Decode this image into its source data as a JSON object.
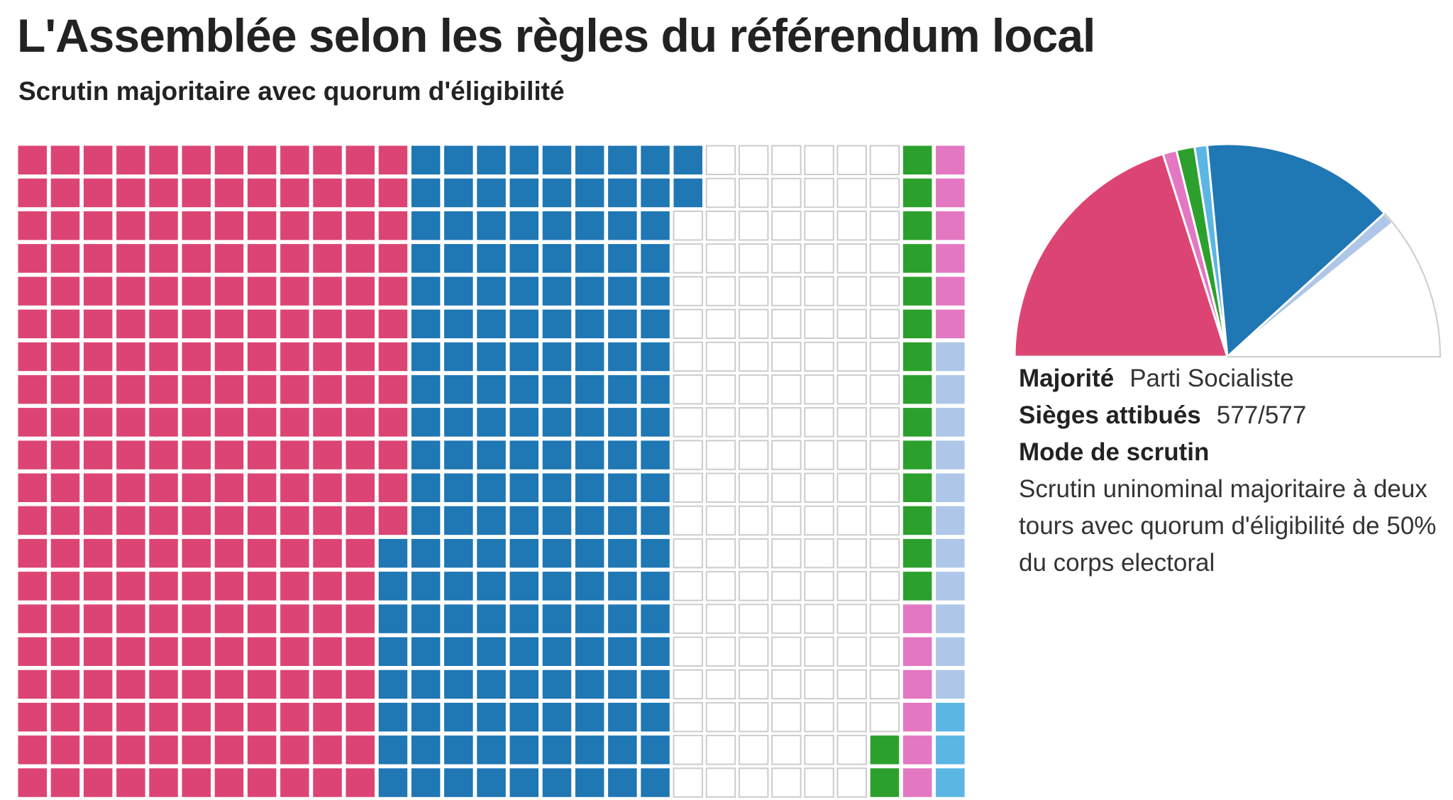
{
  "title": "L'Assemblée selon les règles du référendum local",
  "subtitle": "Scrutin majoritaire avec quorum d'éligibilité",
  "chart_data": [
    {
      "type": "waffle",
      "rows": 20,
      "fill_order": "column-major, top to bottom",
      "colors": {
        "ps": "#dc4573",
        "lr": "#1f77b4",
        "none": "#ffffff",
        "green": "#2ca02c",
        "pink": "#e377c2",
        "lightblue": "#aec7e8",
        "skyblue": "#5bb6e4",
        "empty_border": "#cccccc"
      },
      "segments": [
        {
          "key": "ps",
          "value": 232
        },
        {
          "key": "lr",
          "value": 170
        },
        {
          "key": "none",
          "value": 136
        },
        {
          "key": "green",
          "value": 16
        },
        {
          "key": "pink",
          "value": 12
        },
        {
          "key": "lightblue",
          "value": 11
        },
        {
          "key": "skyblue",
          "value": 11
        }
      ]
    },
    {
      "type": "pie",
      "shape": "semicircle",
      "total": 577,
      "slices": [
        {
          "key": "ps",
          "value": 232,
          "color": "#dc4573"
        },
        {
          "key": "pink",
          "value": 12,
          "color": "#e377c2"
        },
        {
          "key": "green",
          "value": 16,
          "color": "#2ca02c"
        },
        {
          "key": "skyblue",
          "value": 11,
          "color": "#5bb6e4"
        },
        {
          "key": "lr",
          "value": 170,
          "color": "#1f77b4"
        },
        {
          "key": "lightblue",
          "value": 11,
          "color": "#aec7e8"
        },
        {
          "key": "none",
          "value": 136,
          "color": "#ffffff"
        }
      ]
    }
  ],
  "info": {
    "majority_label": "Majorité",
    "majority_value": "Parti Socialiste",
    "seats_label": "Sièges attibués",
    "seats_value": "577/577",
    "mode_label": "Mode de scrutin",
    "mode_text": "Scrutin uninominal majoritaire à deux tours avec quorum d'éligibilité de 50% du corps electoral"
  }
}
